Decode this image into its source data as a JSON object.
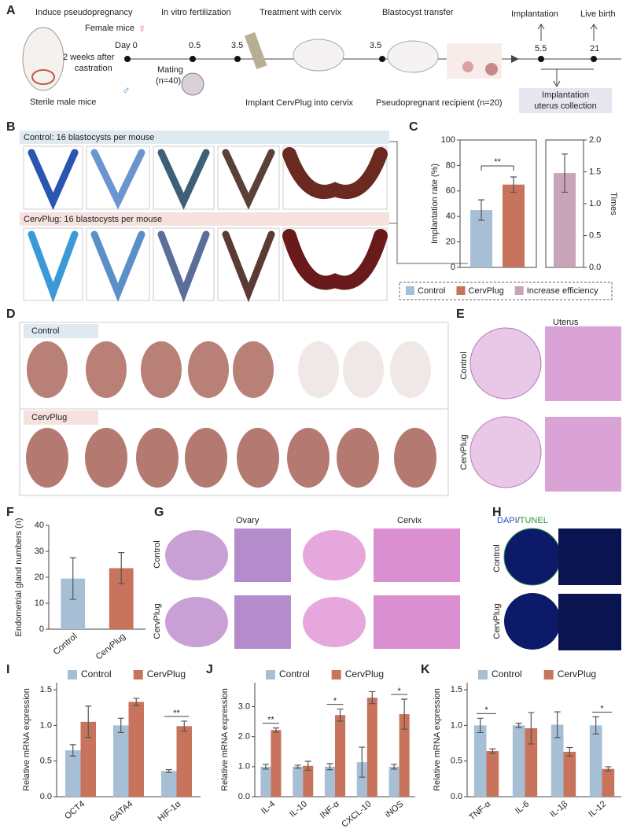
{
  "panel_letters": [
    "A",
    "B",
    "C",
    "D",
    "E",
    "F",
    "G",
    "H",
    "I",
    "J",
    "K"
  ],
  "panel_a": {
    "stages": [
      "Induce pseudopregnancy",
      "In vitro fertilization",
      "Treatment with cervix",
      "Blastocyst transfer",
      "Implantation",
      "Live birth"
    ],
    "female": "Female mice",
    "female_symbol": "♀",
    "male_symbol": "♂",
    "day0": "Day 0",
    "castration": [
      "2 weeks after",
      "castration"
    ],
    "male": "Sterile male mice",
    "mating": [
      "Mating",
      "(n=40)"
    ],
    "days": [
      "0.5",
      "3.5",
      "3.5",
      "5.5",
      "21"
    ],
    "implant": "Implant CervPlug into cervix",
    "recipient": "Pseudopregnant recipient (n=20)",
    "collection": [
      "Implantation",
      "uterus collection"
    ]
  },
  "panel_b": {
    "rows": [
      "Control: 16 blastocysts per mouse",
      "CervPlug: 16 blastocysts per mouse"
    ]
  },
  "panel_d": {
    "rows": [
      "Control",
      "CervPlug"
    ]
  },
  "panel_e": {
    "title": "Uterus",
    "rows": [
      "Control",
      "CervPlug"
    ]
  },
  "panel_g": {
    "columns": [
      "Ovary",
      "Cervix"
    ],
    "rows": [
      "Control",
      "CervPlug"
    ]
  },
  "panel_h": {
    "stain": [
      "DAPI",
      "/",
      "TUNEL"
    ],
    "rows": [
      "Control",
      "CervPlug"
    ]
  },
  "chart_data": [
    {
      "type": "bar",
      "ylabel": "Implantation rate (%)",
      "y2label": "Times",
      "ylim": [
        0,
        100
      ],
      "yticks": [
        0,
        20,
        40,
        60,
        80,
        100
      ],
      "y2lim": [
        0,
        2
      ],
      "y2ticks": [
        {
          "value": 0,
          "label": "0.0"
        },
        0.5,
        {
          "value": 1,
          "label": "1.0"
        },
        1.5,
        {
          "value": 2,
          "label": "2.0"
        }
      ],
      "series": [
        {
          "name": "Control",
          "color": "#a7bfd5",
          "values": [
            45
          ],
          "errors": [
            8
          ]
        },
        {
          "name": "CervPlug",
          "color": "#c8735c",
          "values": [
            65
          ],
          "errors": [
            6
          ]
        },
        {
          "name": "Increase efficiency",
          "color": "#c9a3b8",
          "values": [
            1.48
          ],
          "errors": [
            0.3
          ],
          "axis": "y2"
        }
      ],
      "significance": "**"
    },
    {
      "type": "bar",
      "ylabel": "Endometrial gland numbers (n)",
      "categories": [
        "Control",
        "CervPlug"
      ],
      "values": [
        19.5,
        23.5
      ],
      "errors": [
        8,
        6
      ],
      "colors": [
        "#a7bfd5",
        "#c8735c"
      ],
      "ylim": [
        0,
        40
      ],
      "yticks": [
        0,
        10,
        20,
        30,
        40
      ]
    },
    {
      "type": "bar",
      "ylabel": "Relative mRNA expression",
      "categories": [
        "OCT4",
        "GATA4",
        "HIF-1α"
      ],
      "series": [
        {
          "name": "Control",
          "color": "#a7bfd5",
          "values": [
            0.65,
            1.0,
            0.36
          ],
          "errors": [
            0.08,
            0.1,
            0.02
          ]
        },
        {
          "name": "CervPlug",
          "color": "#c8735c",
          "values": [
            1.05,
            1.33,
            0.99
          ],
          "errors": [
            0.22,
            0.05,
            0.07
          ]
        }
      ],
      "ylim": [
        0,
        1.6
      ],
      "yticks": [
        {
          "value": 0,
          "label": "0.0"
        },
        0.5,
        {
          "value": 1,
          "label": "1.0"
        },
        1.5
      ],
      "significance": [
        null,
        null,
        "**"
      ]
    },
    {
      "type": "bar",
      "ylabel": "Relative mRNA expression",
      "categories": [
        "IL-4",
        "IL-10",
        "INF-α",
        "CXCL-10",
        "iNOS"
      ],
      "series": [
        {
          "name": "Control",
          "color": "#a7bfd5",
          "values": [
            1.0,
            1.0,
            1.0,
            1.15,
            1.0
          ],
          "errors": [
            0.08,
            0.05,
            0.1,
            0.5,
            0.08
          ]
        },
        {
          "name": "CervPlug",
          "color": "#c8735c",
          "values": [
            2.22,
            1.03,
            2.72,
            3.3,
            2.75
          ],
          "errors": [
            0.07,
            0.15,
            0.2,
            0.2,
            0.5
          ]
        }
      ],
      "ylim": [
        0,
        3.8
      ],
      "yticks": [
        {
          "value": 0,
          "label": "0.0"
        },
        {
          "value": 1,
          "label": "1.0"
        },
        {
          "value": 2,
          "label": "2.0"
        },
        {
          "value": 3,
          "label": "3.0"
        }
      ],
      "significance": [
        "**",
        null,
        "*",
        null,
        "*"
      ]
    },
    {
      "type": "bar",
      "ylabel": "Relative mRNA expression",
      "categories": [
        "TNF-α",
        "IL-6",
        "IL-1β",
        "IL-12"
      ],
      "series": [
        {
          "name": "Control",
          "color": "#a7bfd5",
          "values": [
            1.0,
            1.0,
            1.01,
            1.0
          ],
          "errors": [
            0.1,
            0.03,
            0.18,
            0.12
          ]
        },
        {
          "name": "CervPlug",
          "color": "#c8735c",
          "values": [
            0.64,
            0.96,
            0.63,
            0.39
          ],
          "errors": [
            0.03,
            0.22,
            0.06,
            0.03
          ]
        }
      ],
      "ylim": [
        0,
        1.6
      ],
      "yticks": [
        {
          "value": 0,
          "label": "0.0"
        },
        0.5,
        {
          "value": 1,
          "label": "1.0"
        },
        1.5
      ],
      "significance": [
        "*",
        null,
        null,
        "*"
      ]
    }
  ]
}
